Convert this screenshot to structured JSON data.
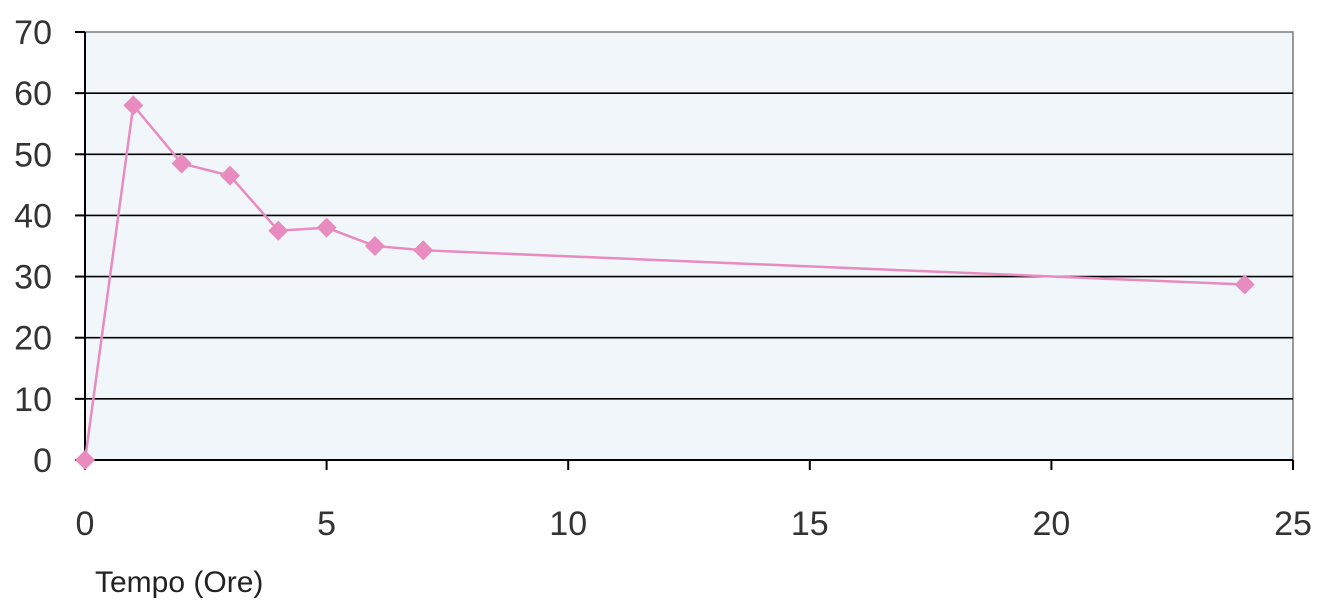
{
  "chart_data": {
    "type": "line",
    "title": "",
    "xlabel": "Tempo (Ore)",
    "ylabel": "",
    "xlim": [
      0,
      25
    ],
    "ylim": [
      0,
      70
    ],
    "xticks": [
      0,
      5,
      10,
      15,
      20,
      25
    ],
    "yticks": [
      0,
      10,
      20,
      30,
      40,
      50,
      60,
      70
    ],
    "grid": true,
    "series": [
      {
        "color": "#e88bbf",
        "marker": "diamond",
        "x": [
          0,
          1,
          2,
          3,
          4,
          5,
          6,
          7,
          24
        ],
        "y": [
          0,
          58,
          48.5,
          46.5,
          37.5,
          38,
          35,
          34.3,
          28.7
        ]
      }
    ]
  },
  "colors": {
    "plot_background": "#f1f6fb",
    "gridline": "#000000",
    "series": "#e88bbf"
  }
}
